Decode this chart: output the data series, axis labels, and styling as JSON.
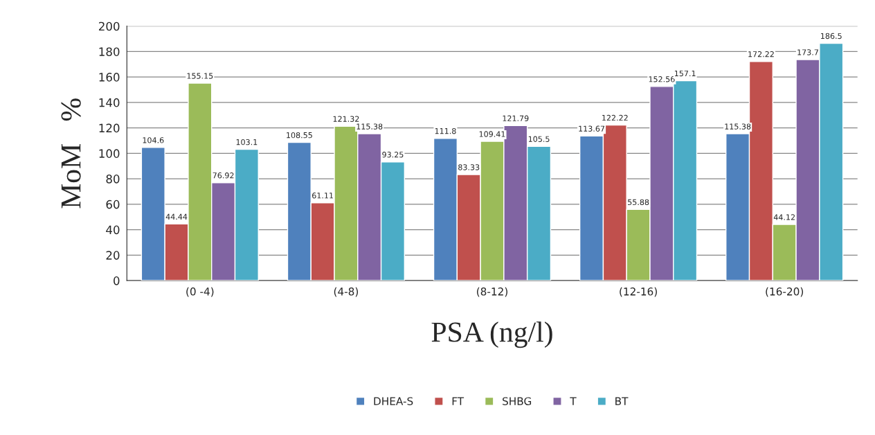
{
  "chart_data": {
    "type": "bar",
    "xlabel": "PSA (ng/l)",
    "ylabel": "MoM   %",
    "categories": [
      "(0 -4)",
      "(4-8)",
      "(8-12)",
      "(12-16)",
      "(16-20)"
    ],
    "series": [
      {
        "name": "DHEA-S",
        "color": "#4f81bd",
        "values": [
          104.6,
          108.55,
          111.8,
          113.67,
          115.38
        ]
      },
      {
        "name": "FT",
        "color": "#c0504d",
        "values": [
          44.44,
          61.11,
          83.33,
          122.22,
          172.22
        ]
      },
      {
        "name": "SHBG",
        "color": "#9bbb59",
        "values": [
          155.15,
          121.32,
          109.41,
          55.88,
          44.12
        ]
      },
      {
        "name": "T",
        "color": "#8064a2",
        "values": [
          76.92,
          115.38,
          121.79,
          152.56,
          173.7
        ]
      },
      {
        "name": "BT",
        "color": "#4bacc6",
        "values": [
          103.1,
          93.25,
          105.5,
          157.1,
          186.5
        ]
      }
    ],
    "ylim": [
      0,
      200
    ],
    "yticks": [
      0,
      20,
      40,
      60,
      80,
      100,
      120,
      140,
      160,
      180,
      200
    ],
    "grid": "y",
    "legend": "bottom",
    "data_labels": true
  }
}
